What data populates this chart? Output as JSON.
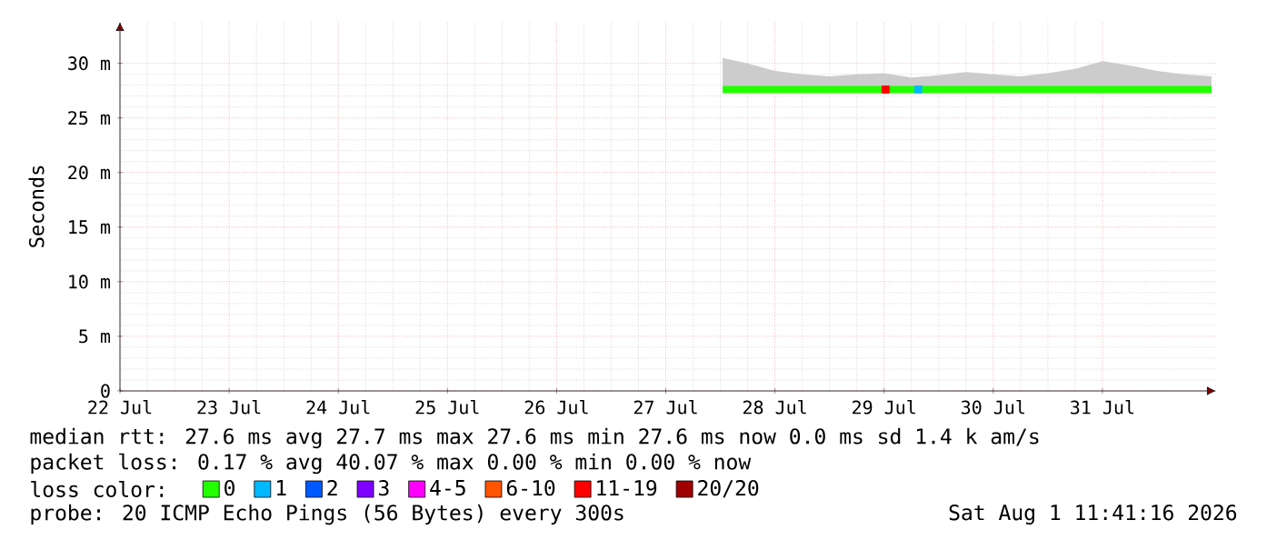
{
  "chart_data": {
    "type": "line",
    "ylabel": "Seconds",
    "legend_title": "loss color:",
    "legend": "bottom",
    "grid": true,
    "xlim": [
      "2026-07-22T00:00",
      "2026-08-01T01:00"
    ],
    "xticks": [
      {
        "value": "2026-07-22T00:00",
        "label": "22 Jul"
      },
      {
        "value": "2026-07-23T00:00",
        "label": "23 Jul"
      },
      {
        "value": "2026-07-24T00:00",
        "label": "24 Jul"
      },
      {
        "value": "2026-07-25T00:00",
        "label": "25 Jul"
      },
      {
        "value": "2026-07-26T00:00",
        "label": "26 Jul"
      },
      {
        "value": "2026-07-27T00:00",
        "label": "27 Jul"
      },
      {
        "value": "2026-07-28T00:00",
        "label": "28 Jul"
      },
      {
        "value": "2026-07-29T00:00",
        "label": "29 Jul"
      },
      {
        "value": "2026-07-30T00:00",
        "label": "30 Jul"
      },
      {
        "value": "2026-07-31T00:00",
        "label": "31 Jul"
      }
    ],
    "ylim": [
      0,
      33.8
    ],
    "yticks": [
      {
        "value": 0,
        "label": "0"
      },
      {
        "value": 5,
        "label": "5 m"
      },
      {
        "value": 10,
        "label": "10 m"
      },
      {
        "value": 15,
        "label": "15 m"
      },
      {
        "value": 20,
        "label": "20 m"
      },
      {
        "value": 25,
        "label": "25 m"
      },
      {
        "value": 30,
        "label": "30 m"
      }
    ],
    "x": [
      "2026-07-27T12:30",
      "2026-07-27T18:00",
      "2026-07-28T00:00",
      "2026-07-28T06:00",
      "2026-07-28T12:00",
      "2026-07-28T18:00",
      "2026-07-29T00:00",
      "2026-07-29T06:00",
      "2026-07-29T12:00",
      "2026-07-29T18:00",
      "2026-07-30T00:00",
      "2026-07-30T06:00",
      "2026-07-30T12:00",
      "2026-07-30T18:00",
      "2026-07-31T00:00",
      "2026-07-31T06:00",
      "2026-07-31T12:00",
      "2026-07-31T18:00",
      "2026-08-01T00:00"
    ],
    "series": [
      {
        "name": "0",
        "color": "#22ff00",
        "values": [
          27.6,
          27.6,
          27.6,
          27.6,
          27.6,
          27.6,
          27.6,
          27.6,
          27.6,
          27.6,
          27.6,
          27.6,
          27.6,
          27.6,
          27.6,
          27.6,
          27.6,
          27.6,
          27.6
        ],
        "lower": [
          27.6,
          27.6,
          27.6,
          27.6,
          27.6,
          27.6,
          27.6,
          27.6,
          27.6,
          27.6,
          27.6,
          27.6,
          27.6,
          27.6,
          27.6,
          27.6,
          27.6,
          27.6,
          27.6
        ],
        "upper": [
          30.5,
          30.0,
          29.3,
          29.0,
          28.8,
          29.0,
          29.1,
          28.7,
          28.9,
          29.2,
          29.0,
          28.8,
          29.1,
          29.5,
          30.2,
          29.8,
          29.3,
          29.0,
          28.8
        ]
      },
      {
        "name": "1",
        "color": "#00b8ff",
        "type": "scatter",
        "x": [
          "2026-07-29T07:30"
        ],
        "values": [
          27.6
        ]
      },
      {
        "name": "2",
        "color": "#0059ff",
        "values": [
          null,
          null,
          null,
          null,
          null,
          null,
          null,
          null,
          null,
          null,
          null,
          null,
          null,
          null,
          null,
          null,
          null,
          null,
          null
        ]
      },
      {
        "name": "3",
        "color": "#7e00ff",
        "values": [
          null,
          null,
          null,
          null,
          null,
          null,
          null,
          null,
          null,
          null,
          null,
          null,
          null,
          null,
          null,
          null,
          null,
          null,
          null
        ]
      },
      {
        "name": "4-5",
        "color": "#ff00ff",
        "values": [
          null,
          null,
          null,
          null,
          null,
          null,
          null,
          null,
          null,
          null,
          null,
          null,
          null,
          null,
          null,
          null,
          null,
          null,
          null
        ]
      },
      {
        "name": "6-10",
        "color": "#ff5500",
        "values": [
          null,
          null,
          null,
          null,
          null,
          null,
          null,
          null,
          null,
          null,
          null,
          null,
          null,
          null,
          null,
          null,
          null,
          null,
          null
        ]
      },
      {
        "name": "11-19",
        "color": "#ff0000",
        "type": "scatter",
        "x": [
          "2026-07-29T00:20"
        ],
        "values": [
          27.6
        ]
      },
      {
        "name": "20/20",
        "color": "#a10000",
        "values": [
          null,
          null,
          null,
          null,
          null,
          null,
          null,
          null,
          null,
          null,
          null,
          null,
          null,
          null,
          null,
          null,
          null,
          null,
          null
        ]
      }
    ],
    "annotations": [
      "median rtt:  27.6 ms avg  27.7 ms max  27.6 ms min  27.6 ms now  0.0 ms sd  1.4 k am/s",
      "packet loss: 0.17 % avg  40.07 % max  0.00 % min  0.00 % now",
      "probe:       20 ICMP Echo Pings (56 Bytes) every 300s",
      "Sat Aug  1 11:41:16 2026"
    ]
  }
}
